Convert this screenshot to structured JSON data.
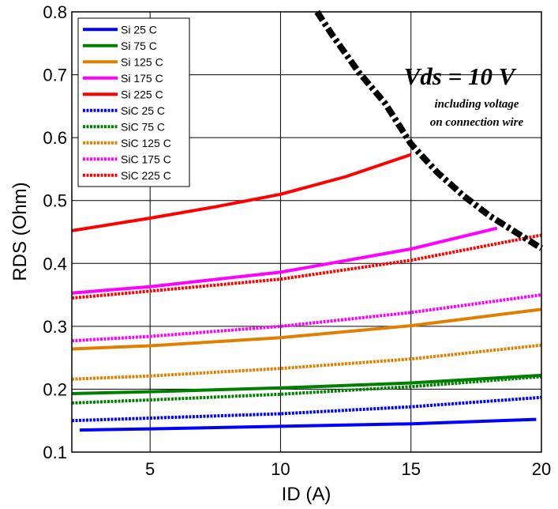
{
  "chart_data": {
    "type": "line",
    "title": "",
    "xlabel": "ID (A)",
    "ylabel": "RDS (Ohm)",
    "xlim": [
      2,
      20
    ],
    "ylim": [
      0.1,
      0.8
    ],
    "grid": true,
    "legend_position": "top-left",
    "x_ticks": [
      5,
      10,
      15,
      20
    ],
    "y_ticks": [
      0.1,
      0.2,
      0.3,
      0.4,
      0.5,
      0.6,
      0.7,
      0.8
    ],
    "series": [
      {
        "name": "Si 25 C",
        "color": "#0000ff",
        "style": "solid",
        "x": [
          2.3,
          5,
          10,
          15,
          19.8
        ],
        "y": [
          0.135,
          0.137,
          0.141,
          0.145,
          0.152
        ]
      },
      {
        "name": "Si 75 C",
        "color": "#008000",
        "style": "solid",
        "x": [
          2,
          5,
          10,
          15,
          20
        ],
        "y": [
          0.193,
          0.196,
          0.202,
          0.21,
          0.222
        ]
      },
      {
        "name": "Si 125 C",
        "color": "#e08000",
        "style": "solid",
        "x": [
          2,
          5,
          10,
          15,
          20
        ],
        "y": [
          0.264,
          0.269,
          0.282,
          0.301,
          0.327
        ]
      },
      {
        "name": "Si 175 C",
        "color": "#ff00ff",
        "style": "solid",
        "x": [
          2,
          5,
          10,
          15,
          18.3
        ],
        "y": [
          0.353,
          0.363,
          0.386,
          0.423,
          0.456
        ]
      },
      {
        "name": "Si 225 C",
        "color": "#ff0000",
        "style": "solid",
        "x": [
          2,
          5,
          7.5,
          10,
          12.5,
          15
        ],
        "y": [
          0.452,
          0.472,
          0.49,
          0.51,
          0.538,
          0.573
        ]
      },
      {
        "name": "SiC 25 C",
        "color": "#0000ff",
        "style": "dotted",
        "x": [
          2,
          5,
          10,
          15,
          20
        ],
        "y": [
          0.15,
          0.154,
          0.161,
          0.172,
          0.187
        ]
      },
      {
        "name": "SiC 75 C",
        "color": "#008000",
        "style": "dotted",
        "x": [
          2,
          5,
          10,
          15,
          20
        ],
        "y": [
          0.178,
          0.183,
          0.192,
          0.204,
          0.22
        ]
      },
      {
        "name": "SiC 125 C",
        "color": "#e08000",
        "style": "dotted",
        "x": [
          2,
          5,
          10,
          15,
          20
        ],
        "y": [
          0.216,
          0.221,
          0.233,
          0.248,
          0.27
        ]
      },
      {
        "name": "SiC 175 C",
        "color": "#ff00ff",
        "style": "dotted",
        "x": [
          2,
          5,
          10,
          15,
          20
        ],
        "y": [
          0.277,
          0.284,
          0.3,
          0.322,
          0.35
        ]
      },
      {
        "name": "SiC 225 C",
        "color": "#ff0000",
        "style": "dotted",
        "x": [
          2,
          5,
          10,
          15,
          20
        ],
        "y": [
          0.345,
          0.356,
          0.375,
          0.405,
          0.445
        ]
      }
    ],
    "boundary": {
      "color": "#000000",
      "style": "dash-dot",
      "x": [
        11.4,
        12,
        13,
        14,
        15,
        16,
        17,
        18,
        19,
        20
      ],
      "y": [
        0.8,
        0.762,
        0.704,
        0.655,
        0.59,
        0.545,
        0.508,
        0.476,
        0.45,
        0.424
      ]
    },
    "annotations": [
      "Vds = 10 V",
      "including voltage",
      "on connection wire"
    ]
  }
}
